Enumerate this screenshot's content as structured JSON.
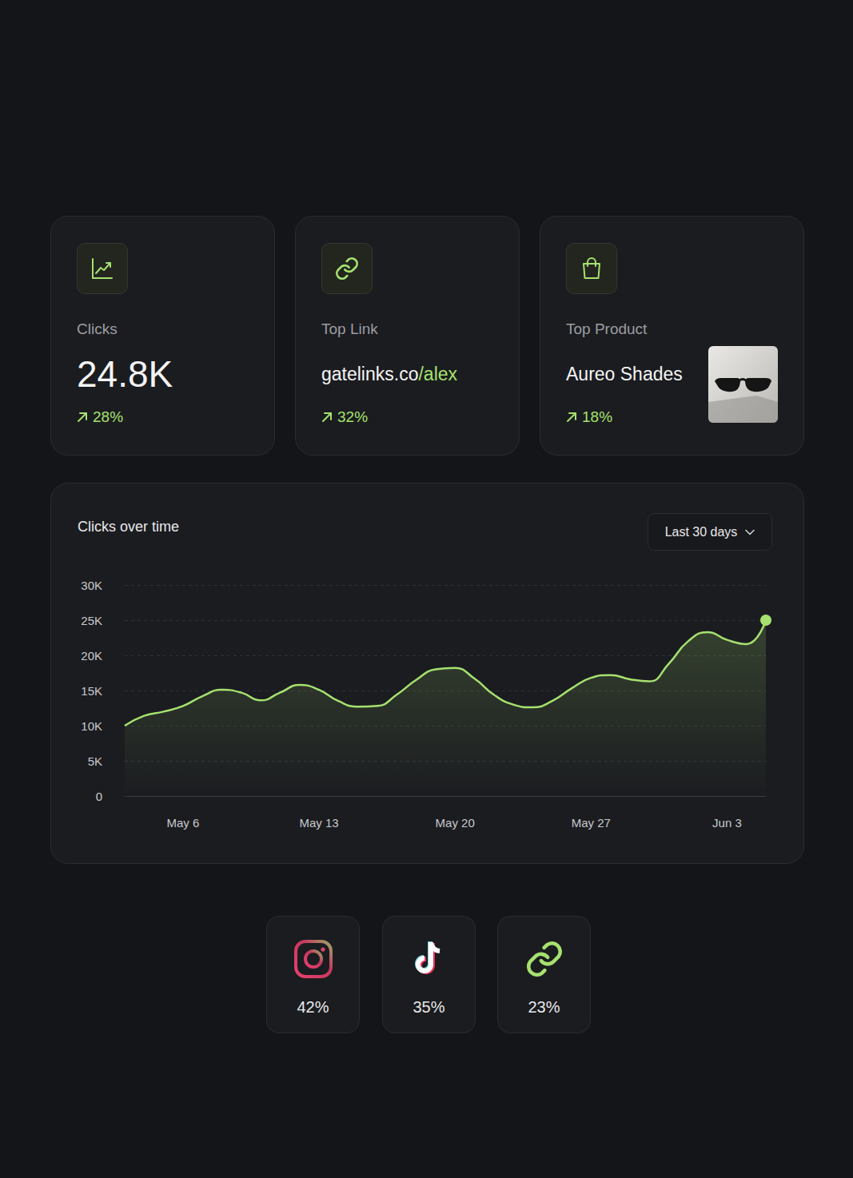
{
  "cards": [
    {
      "label": "Clicks",
      "value": "24.8K",
      "change": "28%"
    },
    {
      "label": "Top Link",
      "value": {
        "text": "gatelinks.co",
        "highlight": "/alex"
      },
      "change": "32%"
    },
    {
      "label": "Top Product",
      "value": "Aureo Shades",
      "change": "18%"
    }
  ],
  "chart_data": {
    "type": "line",
    "title": "Clicks over time",
    "period": "Last 30 days",
    "categories": [
      null,
      null,
      null,
      "May 6",
      null,
      null,
      null,
      null,
      null,
      null,
      "May 13",
      null,
      null,
      null,
      null,
      null,
      null,
      "May 20",
      null,
      null,
      null,
      null,
      null,
      null,
      "May 27",
      null,
      null,
      null,
      null,
      null,
      null,
      "Jun 3",
      null,
      null
    ],
    "values": [
      10000,
      11400,
      12000,
      12800,
      14200,
      15100,
      14700,
      13600,
      14700,
      15800,
      15100,
      13500,
      12700,
      12800,
      14400,
      16500,
      18000,
      18200,
      16700,
      14400,
      13000,
      12600,
      13500,
      15300,
      16800,
      17200,
      16600,
      16300,
      18800,
      22000,
      23300,
      22200,
      21600,
      25000
    ],
    "color": "#a6e16f",
    "marker": "circle",
    "ylim": [
      0,
      30000
    ],
    "yticks": [
      0,
      {
        "value": 5000,
        "label": "5K"
      },
      {
        "value": 10000,
        "label": "10K"
      },
      {
        "value": 15000,
        "label": "15K"
      },
      {
        "value": 20000,
        "label": "20K"
      },
      {
        "value": 25000,
        "label": "25K"
      },
      {
        "value": 30000,
        "label": "30K"
      }
    ],
    "grid": true
  },
  "sources": [
    "42%",
    "35%",
    "23%"
  ]
}
